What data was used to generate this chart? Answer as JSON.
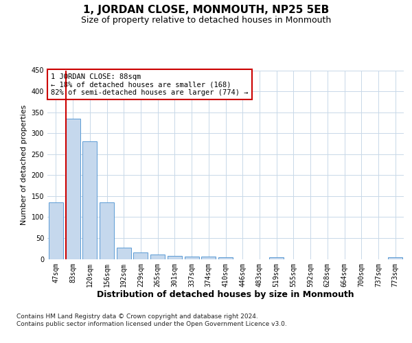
{
  "title": "1, JORDAN CLOSE, MONMOUTH, NP25 5EB",
  "subtitle": "Size of property relative to detached houses in Monmouth",
  "xlabel": "Distribution of detached houses by size in Monmouth",
  "ylabel": "Number of detached properties",
  "categories": [
    "47sqm",
    "83sqm",
    "120sqm",
    "156sqm",
    "192sqm",
    "229sqm",
    "265sqm",
    "301sqm",
    "337sqm",
    "374sqm",
    "410sqm",
    "446sqm",
    "483sqm",
    "519sqm",
    "555sqm",
    "592sqm",
    "628sqm",
    "664sqm",
    "700sqm",
    "737sqm",
    "773sqm"
  ],
  "values": [
    135,
    335,
    280,
    135,
    27,
    15,
    11,
    7,
    6,
    5,
    4,
    0,
    0,
    4,
    0,
    0,
    0,
    0,
    0,
    0,
    4
  ],
  "bar_color": "#c5d8ed",
  "bar_edge_color": "#5b9bd5",
  "property_line_color": "#cc0000",
  "annotation_box_text": "1 JORDAN CLOSE: 88sqm\n← 18% of detached houses are smaller (168)\n82% of semi-detached houses are larger (774) →",
  "annotation_box_color": "#cc0000",
  "background_color": "#ffffff",
  "grid_color": "#c8d8e8",
  "ylim": [
    0,
    450
  ],
  "yticks": [
    0,
    50,
    100,
    150,
    200,
    250,
    300,
    350,
    400,
    450
  ],
  "footer_text": "Contains HM Land Registry data © Crown copyright and database right 2024.\nContains public sector information licensed under the Open Government Licence v3.0.",
  "title_fontsize": 11,
  "subtitle_fontsize": 9,
  "xlabel_fontsize": 9,
  "ylabel_fontsize": 8,
  "tick_fontsize": 7,
  "annotation_fontsize": 7.5,
  "footer_fontsize": 6.5
}
